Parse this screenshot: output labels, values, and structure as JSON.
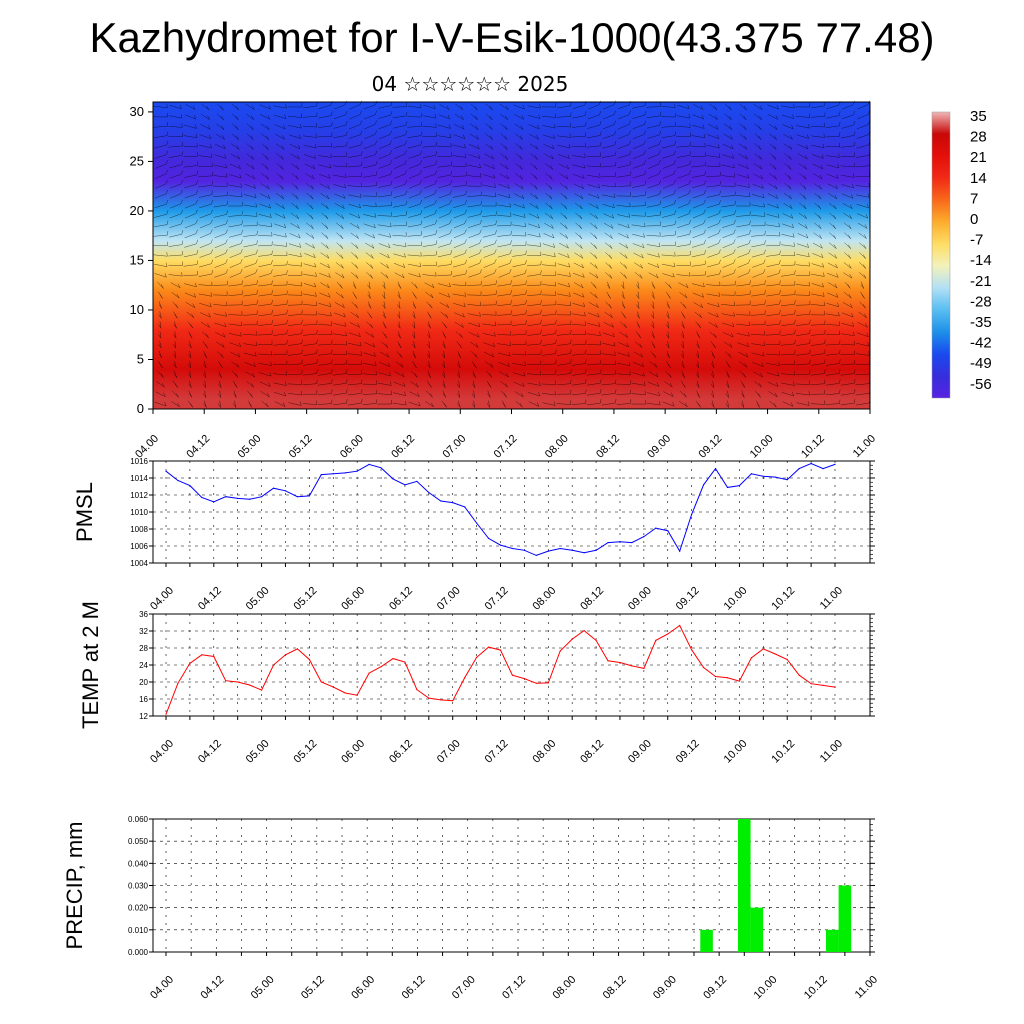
{
  "header": {
    "title": "Kazhydromet for I-V-Esik-1000(43.375 77.48)",
    "date": "04 ☆☆☆☆☆☆ 2025"
  },
  "colors": {
    "pmsl_line": "#0000ff",
    "temp_line": "#ff0000",
    "precip_bar": "#00ee00",
    "wind_barb": "#000000"
  },
  "chart_data": [
    {
      "id": "vertical-section",
      "type": "heatmap",
      "title": "",
      "ylabel": "",
      "yticks": [
        "0",
        "5",
        "10",
        "15",
        "20",
        "25",
        "30"
      ],
      "ylim": [
        0,
        31
      ],
      "xticks": [
        "04.00",
        "04.12",
        "05.00",
        "05.12",
        "06.00",
        "06.12",
        "07.00",
        "07.12",
        "08.00",
        "08.12",
        "09.00",
        "09.12",
        "10.00",
        "10.12",
        "11.00"
      ],
      "color_levels": [
        "35",
        "28",
        "21",
        "14",
        "7",
        "0",
        "-7",
        "-14",
        "-21",
        "-28",
        "-35",
        "-42",
        "-49",
        "-56"
      ],
      "layers": [
        {
          "height": 1,
          "temp": 30
        },
        {
          "height": 4,
          "temp": 25
        },
        {
          "height": 8,
          "temp": 14
        },
        {
          "height": 12,
          "temp": 4
        },
        {
          "height": 15,
          "temp": -7
        },
        {
          "height": 17,
          "temp": -20
        },
        {
          "height": 20,
          "temp": -34
        },
        {
          "height": 23,
          "temp": -55
        },
        {
          "height": 25,
          "temp": -52
        },
        {
          "height": 28,
          "temp": -45
        },
        {
          "height": 31,
          "temp": -42
        }
      ],
      "overlay": "wind-barbs"
    },
    {
      "id": "pmsl",
      "type": "line",
      "ylabel": "PMSL",
      "ylim": [
        1004,
        1016
      ],
      "yticks": [
        "1016",
        "1014",
        "1012",
        "1010",
        "1008",
        "1006",
        "1004"
      ],
      "xticks": [
        "04.00",
        "04.12",
        "05.00",
        "05.12",
        "06.00",
        "06.12",
        "07.00",
        "07.12",
        "08.00",
        "08.12",
        "09.00",
        "09.12",
        "10.00",
        "10.12",
        "11.00"
      ],
      "step_hours": 3,
      "values": [
        1014.8,
        1013.7,
        1013.1,
        1011.7,
        1011.2,
        1011.8,
        1011.6,
        1011.5,
        1011.8,
        1012.8,
        1012.5,
        1011.8,
        1011.9,
        1014.4,
        1014.5,
        1014.6,
        1014.8,
        1015.6,
        1015.2,
        1013.9,
        1013.2,
        1013.6,
        1012.3,
        1011.3,
        1011.1,
        1010.6,
        1008.7,
        1006.9,
        1006.1,
        1005.7,
        1005.5,
        1004.9,
        1005.4,
        1005.7,
        1005.5,
        1005.2,
        1005.5,
        1006.4,
        1006.5,
        1006.4,
        1007.1,
        1008.1,
        1007.8,
        1005.4,
        1009.7,
        1013.2,
        1015.1,
        1012.9,
        1013.1,
        1014.5,
        1014.2,
        1014.1,
        1013.8,
        1015.1,
        1015.7,
        1015.1,
        1015.6
      ]
    },
    {
      "id": "temp2m",
      "type": "line",
      "ylabel": "TEMP at 2 M",
      "ylim": [
        12,
        36
      ],
      "yticks": [
        "36",
        "32",
        "28",
        "24",
        "20",
        "16",
        "12"
      ],
      "xticks": [
        "04.00",
        "04.12",
        "05.00",
        "05.12",
        "06.00",
        "06.12",
        "07.00",
        "07.12",
        "08.00",
        "08.12",
        "09.00",
        "09.12",
        "10.00",
        "10.12",
        "11.00"
      ],
      "step_hours": 3,
      "values": [
        12.4,
        19.7,
        24.4,
        26.4,
        26.0,
        20.3,
        20.0,
        19.3,
        18.1,
        24.0,
        26.4,
        27.8,
        25.3,
        20.0,
        18.8,
        17.4,
        16.9,
        22.1,
        23.6,
        25.5,
        24.7,
        18.2,
        16.2,
        15.8,
        15.6,
        21.0,
        25.8,
        28.2,
        27.5,
        21.6,
        20.8,
        19.7,
        19.8,
        27.3,
        30.1,
        32.1,
        29.8,
        25.0,
        24.6,
        23.8,
        23.2,
        29.8,
        31.3,
        33.3,
        27.6,
        23.4,
        21.3,
        21.0,
        20.2,
        25.7,
        27.8,
        26.6,
        25.3,
        21.6,
        19.6,
        19.2,
        18.8
      ]
    },
    {
      "id": "precip",
      "type": "bar",
      "ylabel": "PRECIP, mm",
      "ylim": [
        0,
        0.06
      ],
      "yticks": [
        "0.060",
        "0.050",
        "0.040",
        "0.030",
        "0.020",
        "0.010",
        "0.000"
      ],
      "xticks": [
        "04.00",
        "04.12",
        "05.00",
        "05.12",
        "06.00",
        "06.12",
        "07.00",
        "07.12",
        "08.00",
        "08.12",
        "09.00",
        "09.12",
        "10.00",
        "10.12",
        "11.00"
      ],
      "step_hours": 3,
      "bars": [
        {
          "hour": 129,
          "value": 0.01
        },
        {
          "hour": 138,
          "value": 0.06
        },
        {
          "hour": 141,
          "value": 0.02
        },
        {
          "hour": 159,
          "value": 0.01
        },
        {
          "hour": 162,
          "value": 0.03
        }
      ]
    }
  ]
}
